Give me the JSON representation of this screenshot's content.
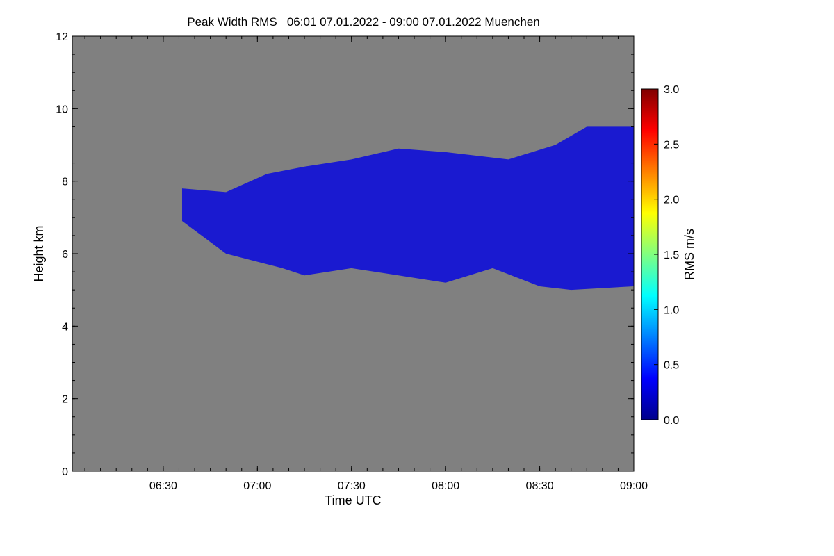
{
  "chart_data": {
    "type": "heatmap",
    "title": "Peak Width RMS   06:01 07.01.2022 - 09:00 07.01.2022 Muenchen",
    "xlabel": "Time UTC",
    "ylabel": "Height km",
    "xlim": [
      "06:01",
      "09:00"
    ],
    "ylim": [
      0,
      12
    ],
    "x_ticks": [
      "06:30",
      "07:00",
      "07:30",
      "08:00",
      "08:30",
      "09:00"
    ],
    "y_ticks": [
      0,
      2,
      4,
      6,
      8,
      10,
      12
    ],
    "background_color": "#808080",
    "colorbar": {
      "label": "RMS m/s",
      "range": [
        0.0,
        3.0
      ],
      "ticks": [
        "0.0",
        "0.5",
        "1.0",
        "1.5",
        "2.0",
        "2.5",
        "3.0"
      ],
      "colors": [
        "#00008b",
        "#0000ff",
        "#0080ff",
        "#00ffff",
        "#80ff80",
        "#ffff00",
        "#ff8000",
        "#ff0000",
        "#800000"
      ]
    },
    "cloud_layer": {
      "description_value_rms": 0.2,
      "color": "#1a1ad0",
      "base_km": [
        {
          "t": "06:36",
          "h": 6.9
        },
        {
          "t": "06:50",
          "h": 6.0
        },
        {
          "t": "07:08",
          "h": 5.6
        },
        {
          "t": "07:15",
          "h": 5.4
        },
        {
          "t": "07:30",
          "h": 5.6
        },
        {
          "t": "07:45",
          "h": 5.4
        },
        {
          "t": "08:00",
          "h": 5.2
        },
        {
          "t": "08:15",
          "h": 5.6
        },
        {
          "t": "08:30",
          "h": 5.1
        },
        {
          "t": "08:40",
          "h": 5.0
        },
        {
          "t": "09:00",
          "h": 5.1
        }
      ],
      "top_km": [
        {
          "t": "06:36",
          "h": 7.8
        },
        {
          "t": "06:50",
          "h": 7.7
        },
        {
          "t": "07:03",
          "h": 8.2
        },
        {
          "t": "07:15",
          "h": 8.4
        },
        {
          "t": "07:30",
          "h": 8.6
        },
        {
          "t": "07:45",
          "h": 8.9
        },
        {
          "t": "08:00",
          "h": 8.8
        },
        {
          "t": "08:20",
          "h": 8.6
        },
        {
          "t": "08:35",
          "h": 9.0
        },
        {
          "t": "08:45",
          "h": 9.5
        },
        {
          "t": "09:00",
          "h": 9.5
        }
      ]
    }
  }
}
